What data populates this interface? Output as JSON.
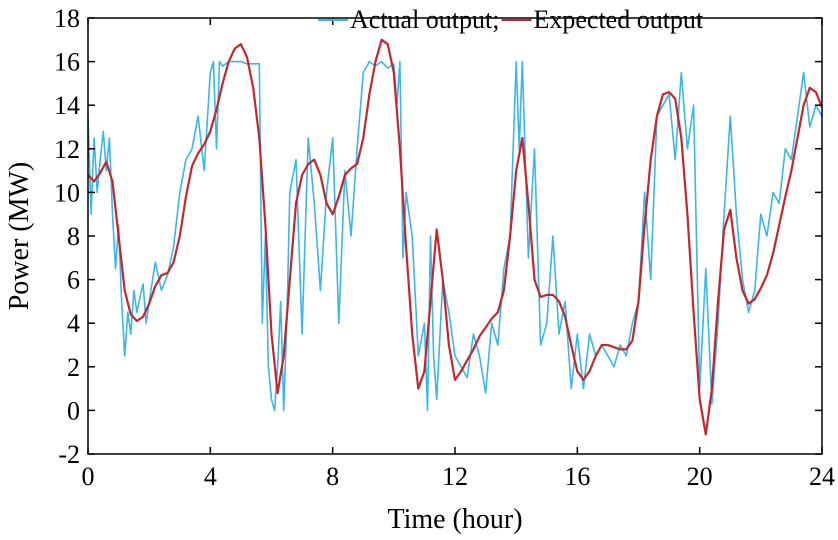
{
  "chart_data": {
    "type": "line",
    "xlabel": "Time (hour)",
    "ylabel": "Power (MW)",
    "xlim": [
      0,
      24
    ],
    "ylim": [
      -2,
      18
    ],
    "xticks": [
      0,
      4,
      8,
      12,
      16,
      20,
      24
    ],
    "xtick_labels": [
      "0",
      "4",
      "8",
      "12",
      "16",
      "20",
      "24"
    ],
    "yticks": [
      -2,
      0,
      2,
      4,
      6,
      8,
      10,
      12,
      14,
      16,
      18
    ],
    "ytick_labels": [
      "-2",
      "0",
      "2",
      "4",
      "6",
      "8",
      "10",
      "12",
      "14",
      "16",
      "18"
    ],
    "grid": false,
    "legend_position": "top-right",
    "series": [
      {
        "name": "Actual output;",
        "color": "#3bb6e6",
        "x": [
          0,
          0.1,
          0.2,
          0.3,
          0.4,
          0.5,
          0.6,
          0.7,
          0.8,
          0.9,
          1.0,
          1.1,
          1.2,
          1.3,
          1.4,
          1.5,
          1.6,
          1.7,
          1.8,
          1.9,
          2.0,
          2.2,
          2.4,
          2.6,
          2.8,
          3.0,
          3.2,
          3.4,
          3.6,
          3.8,
          4.0,
          4.1,
          4.2,
          4.3,
          4.4,
          4.6,
          4.8,
          5.0,
          5.2,
          5.4,
          5.6,
          5.7,
          5.8,
          5.9,
          6.0,
          6.1,
          6.2,
          6.3,
          6.4,
          6.5,
          6.6,
          6.8,
          7.0,
          7.2,
          7.4,
          7.6,
          7.8,
          8.0,
          8.2,
          8.4,
          8.6,
          8.8,
          9.0,
          9.2,
          9.4,
          9.6,
          9.8,
          10.0,
          10.1,
          10.2,
          10.3,
          10.4,
          10.6,
          10.8,
          11.0,
          11.1,
          11.2,
          11.3,
          11.4,
          11.6,
          11.8,
          12.0,
          12.2,
          12.4,
          12.6,
          12.8,
          13.0,
          13.2,
          13.4,
          13.6,
          13.8,
          14.0,
          14.1,
          14.2,
          14.4,
          14.6,
          14.8,
          15.0,
          15.2,
          15.4,
          15.6,
          15.8,
          16.0,
          16.2,
          16.4,
          16.6,
          16.8,
          17.0,
          17.2,
          17.4,
          17.6,
          17.8,
          18.0,
          18.2,
          18.4,
          18.6,
          18.8,
          19.0,
          19.2,
          19.4,
          19.6,
          19.8,
          20.0,
          20.2,
          20.4,
          20.6,
          20.8,
          21.0,
          21.2,
          21.4,
          21.6,
          21.8,
          22.0,
          22.2,
          22.4,
          22.6,
          22.8,
          23.0,
          23.2,
          23.4,
          23.6,
          23.8,
          24.0
        ],
        "y": [
          13.5,
          9.0,
          12.5,
          10.0,
          11.5,
          12.8,
          11.0,
          12.5,
          9.0,
          6.5,
          8.5,
          5.0,
          2.5,
          4.5,
          3.5,
          5.5,
          4.5,
          5.2,
          5.8,
          4.0,
          5.0,
          6.8,
          5.5,
          6.2,
          7.5,
          10.0,
          11.5,
          12.0,
          13.5,
          11.0,
          15.5,
          16.0,
          12.0,
          16.0,
          15.8,
          16.0,
          16.0,
          16.0,
          15.9,
          15.9,
          15.9,
          4.0,
          8.0,
          2.0,
          0.5,
          0.0,
          2.0,
          5.0,
          0.0,
          4.0,
          10.0,
          11.5,
          3.5,
          12.5,
          9.5,
          5.5,
          10.0,
          12.5,
          4.0,
          11.0,
          8.0,
          12.0,
          15.5,
          16.0,
          15.8,
          16.0,
          15.7,
          15.9,
          14.0,
          16.0,
          7.0,
          10.0,
          8.0,
          2.5,
          4.0,
          0.0,
          8.0,
          2.5,
          0.5,
          6.0,
          4.5,
          2.5,
          2.0,
          1.5,
          3.5,
          2.5,
          0.8,
          4.0,
          3.0,
          6.5,
          8.0,
          16.0,
          12.0,
          16.0,
          7.0,
          12.0,
          3.0,
          4.0,
          8.0,
          3.5,
          5.0,
          1.0,
          3.5,
          1.0,
          3.5,
          2.5,
          3.0,
          2.5,
          2.0,
          3.0,
          2.5,
          4.0,
          5.0,
          10.0,
          6.0,
          13.5,
          14.0,
          14.5,
          11.5,
          15.5,
          12.0,
          14.0,
          1.0,
          6.5,
          0.3,
          4.0,
          9.0,
          13.5,
          9.0,
          6.0,
          4.5,
          5.5,
          9.0,
          8.0,
          10.0,
          9.5,
          12.0,
          11.5,
          13.5,
          15.5,
          13.0,
          14.0,
          13.5
        ]
      },
      {
        "name": "Expected output",
        "color": "#c1272d",
        "x": [
          0,
          0.2,
          0.4,
          0.6,
          0.8,
          1.0,
          1.2,
          1.4,
          1.6,
          1.8,
          2.0,
          2.2,
          2.4,
          2.6,
          2.8,
          3.0,
          3.2,
          3.4,
          3.6,
          3.8,
          4.0,
          4.2,
          4.4,
          4.6,
          4.8,
          5.0,
          5.2,
          5.4,
          5.6,
          5.8,
          6.0,
          6.2,
          6.4,
          6.6,
          6.8,
          7.0,
          7.2,
          7.4,
          7.6,
          7.8,
          8.0,
          8.2,
          8.4,
          8.6,
          8.8,
          9.0,
          9.2,
          9.4,
          9.6,
          9.8,
          10.0,
          10.2,
          10.4,
          10.6,
          10.8,
          11.0,
          11.2,
          11.4,
          11.6,
          11.8,
          12.0,
          12.2,
          12.4,
          12.6,
          12.8,
          13.0,
          13.2,
          13.4,
          13.6,
          13.8,
          14.0,
          14.2,
          14.4,
          14.6,
          14.8,
          15.0,
          15.2,
          15.4,
          15.6,
          15.8,
          16.0,
          16.2,
          16.4,
          16.6,
          16.8,
          17.0,
          17.2,
          17.4,
          17.6,
          17.8,
          18.0,
          18.2,
          18.4,
          18.6,
          18.8,
          19.0,
          19.2,
          19.4,
          19.6,
          19.8,
          20.0,
          20.2,
          20.4,
          20.6,
          20.8,
          21.0,
          21.2,
          21.4,
          21.6,
          21.8,
          22.0,
          22.2,
          22.4,
          22.6,
          22.8,
          23.0,
          23.2,
          23.4,
          23.6,
          23.8,
          24.0
        ],
        "y": [
          10.8,
          10.5,
          10.9,
          11.4,
          10.5,
          8.0,
          5.5,
          4.4,
          4.1,
          4.3,
          4.9,
          5.7,
          6.2,
          6.3,
          6.8,
          8.0,
          9.8,
          11.2,
          11.8,
          12.2,
          12.8,
          13.8,
          15.0,
          16.0,
          16.6,
          16.8,
          16.2,
          14.8,
          12.5,
          8.5,
          3.5,
          0.8,
          2.5,
          6.0,
          9.5,
          10.8,
          11.3,
          11.5,
          10.8,
          9.5,
          9.0,
          9.8,
          10.8,
          11.1,
          11.3,
          12.5,
          14.5,
          16.0,
          17.0,
          16.8,
          15.5,
          12.0,
          7.5,
          3.5,
          1.0,
          1.8,
          5.0,
          8.3,
          6.0,
          3.0,
          1.4,
          1.8,
          2.3,
          2.8,
          3.4,
          3.8,
          4.2,
          4.5,
          5.5,
          8.0,
          11.0,
          12.5,
          9.5,
          6.0,
          5.2,
          5.3,
          5.3,
          5.0,
          4.3,
          3.0,
          1.8,
          1.4,
          1.8,
          2.5,
          3.0,
          3.0,
          2.9,
          2.8,
          2.8,
          3.2,
          5.0,
          8.5,
          11.5,
          13.5,
          14.5,
          14.6,
          14.3,
          12.5,
          9.0,
          4.5,
          0.5,
          -1.1,
          1.0,
          5.0,
          8.3,
          9.2,
          7.0,
          5.5,
          4.9,
          5.1,
          5.6,
          6.2,
          7.2,
          8.5,
          9.8,
          11.0,
          12.5,
          14.0,
          14.8,
          14.6,
          13.9
        ]
      }
    ]
  }
}
